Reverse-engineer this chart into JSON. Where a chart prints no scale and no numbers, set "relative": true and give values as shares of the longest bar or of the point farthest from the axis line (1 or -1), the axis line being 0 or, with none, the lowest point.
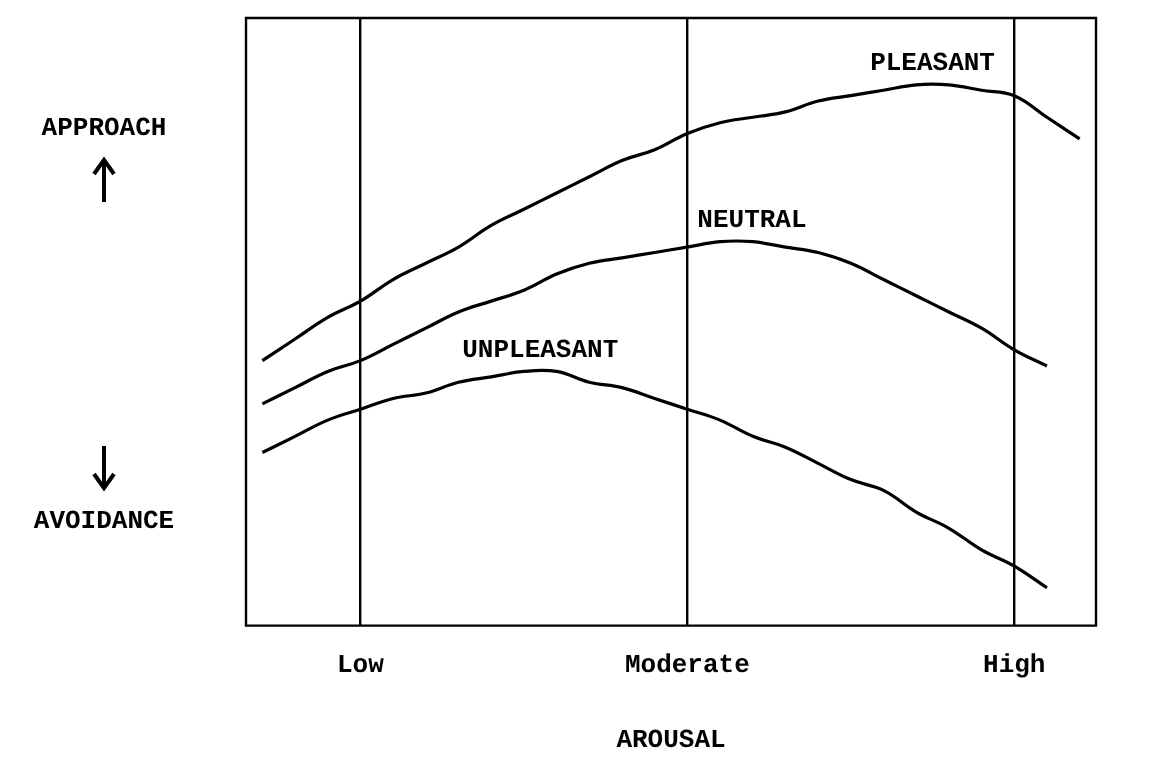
{
  "chart_data": {
    "type": "line",
    "relative": true,
    "xlabel": "AROUSAL",
    "categories": [
      null,
      null,
      null,
      "Low",
      null,
      null,
      null,
      null,
      null,
      null,
      null,
      null,
      null,
      "Moderate",
      null,
      null,
      null,
      null,
      null,
      null,
      null,
      null,
      null,
      "High",
      null,
      null
    ],
    "grid": "x",
    "legend": false,
    "marker": "none",
    "line_style": "solid",
    "annotations": [
      "APPROACH",
      "AVOIDANCE"
    ],
    "series": [
      {
        "name": "PLEASANT",
        "color": "#000000",
        "values": [
          0.49,
          0.53,
          0.57,
          0.6,
          0.64,
          0.67,
          0.7,
          0.74,
          0.77,
          0.8,
          0.83,
          0.86,
          0.88,
          0.91,
          0.93,
          0.94,
          0.95,
          0.97,
          0.98,
          0.99,
          1.0,
          1.0,
          0.99,
          0.98,
          0.94,
          0.9
        ]
      },
      {
        "name": "NEUTRAL",
        "color": "#000000",
        "values": [
          0.41,
          0.44,
          0.47,
          0.49,
          0.52,
          0.55,
          0.58,
          0.6,
          0.62,
          0.65,
          0.67,
          0.68,
          0.69,
          0.7,
          0.71,
          0.71,
          0.7,
          0.69,
          0.67,
          0.64,
          0.61,
          0.58,
          0.55,
          0.51,
          0.48,
          null
        ]
      },
      {
        "name": "UNPLEASANT",
        "color": "#000000",
        "values": [
          0.32,
          0.35,
          0.38,
          0.4,
          0.42,
          0.43,
          0.45,
          0.46,
          0.47,
          0.47,
          0.45,
          0.44,
          0.42,
          0.4,
          0.38,
          0.35,
          0.33,
          0.3,
          0.27,
          0.25,
          0.21,
          0.18,
          0.14,
          0.11,
          0.07,
          null
        ]
      }
    ]
  }
}
